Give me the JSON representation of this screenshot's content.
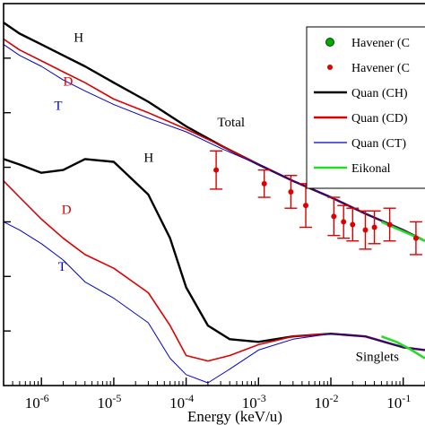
{
  "chart_data": {
    "type": "line",
    "xlabel": "Energy (keV/u)",
    "xscale": "log",
    "xlim": [
      3e-07,
      0.2
    ],
    "ylim": [
      -7,
      0
    ],
    "x_ticks": [
      {
        "value": 1e-06,
        "base": "10",
        "exp": "-6"
      },
      {
        "value": 1e-05,
        "base": "10",
        "exp": "-5"
      },
      {
        "value": 0.0001,
        "base": "10",
        "exp": "-4"
      },
      {
        "value": 0.001,
        "base": "10",
        "exp": "-3"
      },
      {
        "value": 0.01,
        "base": "10",
        "exp": "-2"
      },
      {
        "value": 0.1,
        "base": "10",
        "exp": "-1"
      }
    ],
    "legend": {
      "placement": "top-right",
      "entries": [
        {
          "label": "Havener (C",
          "kind": "marker",
          "color": "#00aa00"
        },
        {
          "label": "Havener (C",
          "kind": "marker",
          "color": "#dd0000"
        },
        {
          "label": "Quan (CH)",
          "kind": "line",
          "color": "#000000"
        },
        {
          "label": "Quan (CD)",
          "kind": "line",
          "color": "#dd0000"
        },
        {
          "label": "Quan (CT)",
          "kind": "line",
          "color": "#0000cc"
        },
        {
          "label": "Eikonal",
          "kind": "line",
          "color": "#22dd22"
        }
      ]
    },
    "annotations": [
      {
        "text": "H",
        "x": 2.8e-06,
        "y": -0.7,
        "color": "#000000"
      },
      {
        "text": "D",
        "x": 2e-06,
        "y": -1.5,
        "color": "#dd0000"
      },
      {
        "text": "T",
        "x": 1.5e-06,
        "y": -1.95,
        "color": "#0000cc"
      },
      {
        "text": "Total",
        "x": 0.00027,
        "y": -2.25,
        "color": "#000000"
      },
      {
        "text": "H",
        "x": 2.6e-05,
        "y": -2.9,
        "color": "#000000"
      },
      {
        "text": "D",
        "x": 1.9e-06,
        "y": -3.85,
        "color": "#dd0000"
      },
      {
        "text": "T",
        "x": 1.7e-06,
        "y": -4.9,
        "color": "#0000cc"
      },
      {
        "text": "Singlets",
        "x": 0.022,
        "y": -6.55,
        "color": "#000000"
      }
    ],
    "series": [
      {
        "name": "Quan (CH)",
        "group": "total",
        "color": "#000000",
        "width": 2.4,
        "x": [
          3e-07,
          5e-07,
          1e-06,
          2e-06,
          4e-06,
          1e-05,
          3e-05,
          0.0001,
          0.0003,
          0.001,
          0.003,
          0.01,
          0.03,
          0.1,
          0.2
        ],
        "y": [
          -0.35,
          -0.55,
          -0.75,
          -0.95,
          -1.15,
          -1.45,
          -1.8,
          -2.25,
          -2.6,
          -2.95,
          -3.25,
          -3.55,
          -3.85,
          -4.15,
          -4.35
        ]
      },
      {
        "name": "Quan (CD)",
        "group": "total",
        "color": "#dd0000",
        "width": 1.6,
        "x": [
          3e-07,
          5e-07,
          1e-06,
          2e-06,
          4e-06,
          1e-05,
          3e-05,
          0.0001,
          0.0003,
          0.001,
          0.003,
          0.01,
          0.03,
          0.1,
          0.2
        ],
        "y": [
          -0.65,
          -0.85,
          -1.05,
          -1.25,
          -1.45,
          -1.75,
          -2.0,
          -2.3,
          -2.6,
          -2.95,
          -3.25,
          -3.55,
          -3.85,
          -4.15,
          -4.35
        ]
      },
      {
        "name": "Quan (CT)",
        "group": "total",
        "color": "#0000cc",
        "width": 1.0,
        "x": [
          3e-07,
          5e-07,
          1e-06,
          2e-06,
          4e-06,
          1e-05,
          3e-05,
          0.0001,
          0.0003,
          0.001,
          0.003,
          0.01,
          0.03,
          0.1,
          0.2
        ],
        "y": [
          -0.75,
          -0.95,
          -1.15,
          -1.4,
          -1.6,
          -1.85,
          -2.1,
          -2.35,
          -2.65,
          -2.95,
          -3.25,
          -3.55,
          -3.85,
          -4.15,
          -4.35
        ]
      },
      {
        "name": "Quan (CH)",
        "group": "singlets",
        "color": "#000000",
        "width": 2.4,
        "x": [
          3e-07,
          5e-07,
          1e-06,
          2e-06,
          4e-06,
          1e-05,
          3e-05,
          6e-05,
          0.0001,
          0.0002,
          0.0004,
          0.001,
          0.003,
          0.01,
          0.03,
          0.1,
          0.2
        ],
        "y": [
          -2.85,
          -2.95,
          -3.1,
          -3.05,
          -2.85,
          -2.9,
          -3.5,
          -4.3,
          -5.2,
          -5.9,
          -6.15,
          -6.2,
          -6.1,
          -6.05,
          -6.1,
          -6.3,
          -6.35
        ]
      },
      {
        "name": "Quan (CD)",
        "group": "singlets",
        "color": "#dd0000",
        "width": 1.6,
        "x": [
          3e-07,
          5e-07,
          1e-06,
          2e-06,
          4e-06,
          1e-05,
          3e-05,
          6e-05,
          0.0001,
          0.0002,
          0.0004,
          0.001,
          0.003,
          0.01,
          0.03,
          0.1,
          0.2
        ],
        "y": [
          -3.25,
          -3.55,
          -3.95,
          -4.3,
          -4.6,
          -4.85,
          -5.3,
          -5.9,
          -6.45,
          -6.55,
          -6.45,
          -6.25,
          -6.1,
          -6.05,
          -6.1,
          -6.3,
          -6.35
        ]
      },
      {
        "name": "Quan (CT)",
        "group": "singlets",
        "color": "#0000cc",
        "width": 1.0,
        "x": [
          3e-07,
          5e-07,
          1e-06,
          2e-06,
          4e-06,
          1e-05,
          3e-05,
          6e-05,
          0.0001,
          0.0002,
          0.0004,
          0.001,
          0.003,
          0.01,
          0.03,
          0.1,
          0.2
        ],
        "y": [
          -4.0,
          -4.15,
          -4.4,
          -4.7,
          -5.1,
          -5.4,
          -5.85,
          -6.5,
          -6.8,
          -6.95,
          -6.7,
          -6.35,
          -6.15,
          -6.05,
          -6.1,
          -6.3,
          -6.35
        ]
      },
      {
        "name": "Eikonal",
        "group": "total",
        "color": "#22dd22",
        "width": 2.6,
        "x": [
          0.05,
          0.08,
          0.12,
          0.2
        ],
        "y": [
          -4.0,
          -4.12,
          -4.22,
          -4.35
        ]
      },
      {
        "name": "Eikonal",
        "group": "singlets",
        "color": "#22dd22",
        "width": 2.6,
        "x": [
          0.05,
          0.08,
          0.12,
          0.2
        ],
        "y": [
          -6.1,
          -6.2,
          -6.32,
          -6.5
        ]
      }
    ],
    "points": {
      "name": "Havener (C",
      "color": "#dd0000",
      "data": [
        {
          "x": 0.00026,
          "y": -3.05,
          "err": 0.35
        },
        {
          "x": 0.0012,
          "y": -3.3,
          "err": 0.25
        },
        {
          "x": 0.0028,
          "y": -3.45,
          "err": 0.3
        },
        {
          "x": 0.0045,
          "y": -3.7,
          "err": 0.4
        },
        {
          "x": 0.011,
          "y": -3.9,
          "err": 0.35
        },
        {
          "x": 0.015,
          "y": -4.0,
          "err": 0.3
        },
        {
          "x": 0.02,
          "y": -4.05,
          "err": 0.3
        },
        {
          "x": 0.03,
          "y": -4.15,
          "err": 0.35
        },
        {
          "x": 0.04,
          "y": -4.1,
          "err": 0.3
        },
        {
          "x": 0.065,
          "y": -4.05,
          "err": 0.3
        },
        {
          "x": 0.15,
          "y": -4.3,
          "err": 0.3
        }
      ]
    }
  }
}
